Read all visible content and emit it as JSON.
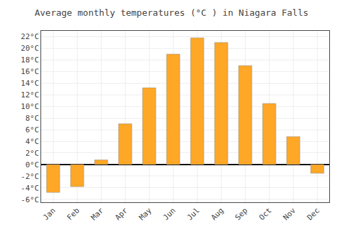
{
  "chart_data": {
    "type": "bar",
    "title": "Average monthly temperatures (°C ) in Niagara Falls",
    "categories": [
      "Jan",
      "Feb",
      "Mar",
      "Apr",
      "May",
      "Jun",
      "Jul",
      "Aug",
      "Sep",
      "Oct",
      "Nov",
      "Dec"
    ],
    "values": [
      -4.8,
      -3.8,
      0.8,
      7.0,
      13.2,
      19.0,
      21.8,
      21.0,
      17.0,
      10.5,
      4.8,
      -1.5
    ],
    "color": "#FFA726",
    "ylim": [
      -6.5,
      23
    ],
    "yticks": [
      {
        "value": -6,
        "label": "-6°C"
      },
      {
        "value": -4,
        "label": "-4°C"
      },
      {
        "value": -2,
        "label": "-2°C"
      },
      {
        "value": 0,
        "label": "0°C"
      },
      {
        "value": 2,
        "label": "2°C"
      },
      {
        "value": 4,
        "label": "4°C"
      },
      {
        "value": 6,
        "label": "6°C"
      },
      {
        "value": 8,
        "label": "8°C"
      },
      {
        "value": 10,
        "label": "10°C"
      },
      {
        "value": 12,
        "label": "12°C"
      },
      {
        "value": 14,
        "label": "14°C"
      },
      {
        "value": 16,
        "label": "16°C"
      },
      {
        "value": 18,
        "label": "18°C"
      },
      {
        "value": 20,
        "label": "20°C"
      },
      {
        "value": 22,
        "label": "22°C"
      }
    ],
    "grid": true
  }
}
